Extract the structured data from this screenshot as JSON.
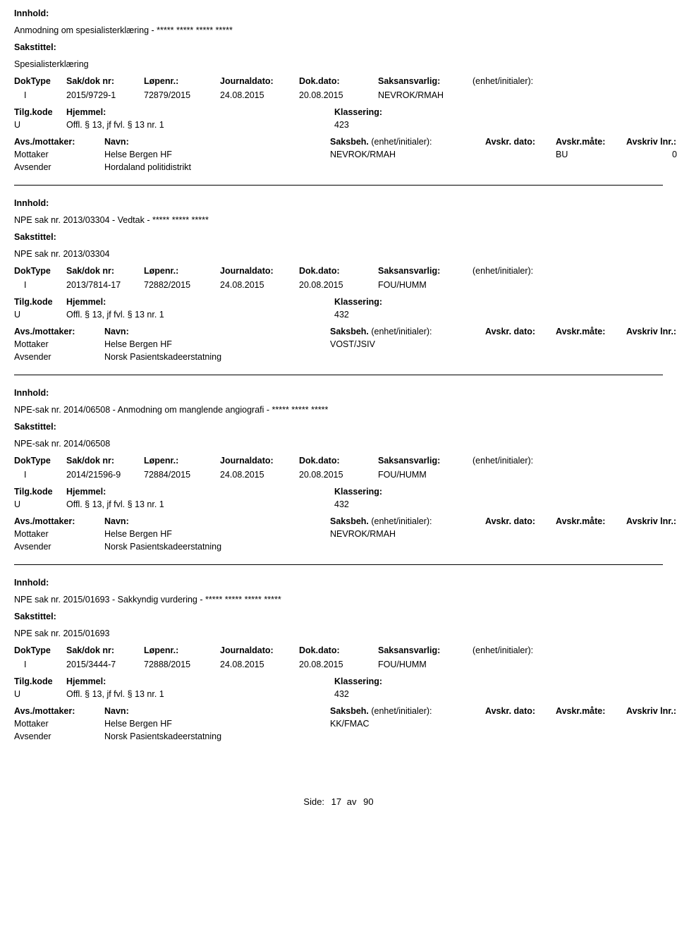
{
  "labels": {
    "innhold": "Innhold:",
    "sakstittel": "Sakstittel:",
    "doktype": "DokType",
    "sakdoknr": "Sak/dok nr:",
    "lopenr": "Løpenr.:",
    "journaldato": "Journaldato:",
    "dokdato": "Dok.dato:",
    "saksansvarlig": "Saksansvarlig:",
    "enhet": "(enhet/initialer):",
    "tilgkode": "Tilg.kode",
    "hjemmel": "Hjemmel:",
    "klassering": "Klassering:",
    "avsmottaker": "Avs./mottaker:",
    "navn": "Navn:",
    "saksbeh": "Saksbeh.",
    "saksbeh_enhet": "(enhet/initialer):",
    "avskrdato": "Avskr. dato:",
    "avskrmate": "Avskr.måte:",
    "avskrivlnr": "Avskriv lnr.:",
    "mottaker": "Mottaker",
    "avsender": "Avsender"
  },
  "footer": {
    "side_label": "Side:",
    "page": "17",
    "av": "av",
    "total": "90"
  },
  "entries": [
    {
      "innhold": "Anmodning om spesialisterklæring - ***** ***** ***** *****",
      "sakstittel": "Spesialisterklæring",
      "doktype": "I",
      "sakdoknr": "2015/9729-1",
      "lopenr": "72879/2015",
      "journaldato": "24.08.2015",
      "dokdato": "20.08.2015",
      "saksansvarlig": "NEVROK/RMAH",
      "tilgkode": "U",
      "hjemmel": "Offl. § 13, jf fvl. § 13 nr. 1",
      "klassering": "423",
      "mottaker_navn": "Helse Bergen HF",
      "saksbeh": "NEVROK/RMAH",
      "avskrmate": "BU",
      "avskrivlnr": "0",
      "avsender_navn": "Hordaland politidistrikt"
    },
    {
      "innhold": "NPE sak nr. 2013/03304 - Vedtak - ***** ***** *****",
      "sakstittel": "NPE sak nr. 2013/03304",
      "doktype": "I",
      "sakdoknr": "2013/7814-17",
      "lopenr": "72882/2015",
      "journaldato": "24.08.2015",
      "dokdato": "20.08.2015",
      "saksansvarlig": "FOU/HUMM",
      "tilgkode": "U",
      "hjemmel": "Offl. § 13, jf fvl. § 13 nr. 1",
      "klassering": "432",
      "mottaker_navn": "Helse Bergen HF",
      "saksbeh": "VOST/JSIV",
      "avskrmate": "",
      "avskrivlnr": "",
      "avsender_navn": "Norsk Pasientskadeerstatning"
    },
    {
      "innhold": "NPE-sak nr. 2014/06508 - Anmodning om manglende angiografi - ***** ***** *****",
      "sakstittel": "NPE-sak nr. 2014/06508",
      "doktype": "I",
      "sakdoknr": "2014/21596-9",
      "lopenr": "72884/2015",
      "journaldato": "24.08.2015",
      "dokdato": "20.08.2015",
      "saksansvarlig": "FOU/HUMM",
      "tilgkode": "U",
      "hjemmel": "Offl. § 13, jf fvl. § 13 nr. 1",
      "klassering": "432",
      "mottaker_navn": "Helse Bergen HF",
      "saksbeh": "NEVROK/RMAH",
      "avskrmate": "",
      "avskrivlnr": "",
      "avsender_navn": "Norsk Pasientskadeerstatning"
    },
    {
      "innhold": "NPE sak nr. 2015/01693 - Sakkyndig vurdering - ***** ***** ***** *****",
      "sakstittel": "NPE sak nr. 2015/01693",
      "doktype": "I",
      "sakdoknr": "2015/3444-7",
      "lopenr": "72888/2015",
      "journaldato": "24.08.2015",
      "dokdato": "20.08.2015",
      "saksansvarlig": "FOU/HUMM",
      "tilgkode": "U",
      "hjemmel": "Offl. § 13, jf fvl. § 13 nr. 1",
      "klassering": "432",
      "mottaker_navn": "Helse Bergen HF",
      "saksbeh": "KK/FMAC",
      "avskrmate": "",
      "avskrivlnr": "",
      "avsender_navn": "Norsk Pasientskadeerstatning"
    }
  ]
}
